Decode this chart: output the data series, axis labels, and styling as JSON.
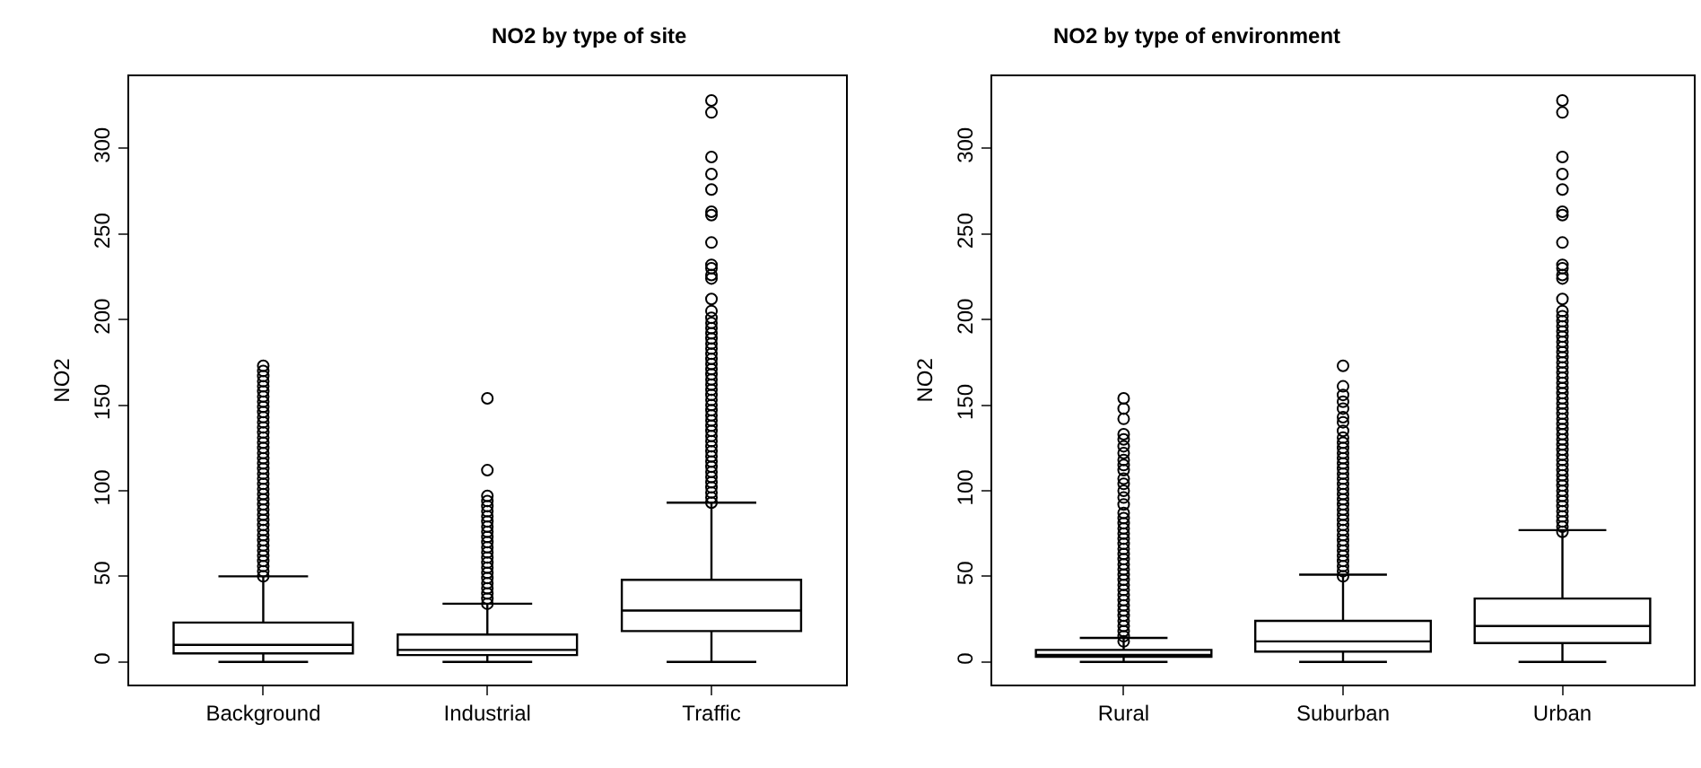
{
  "chart_data": [
    {
      "type": "box",
      "title": "NO2 by type of site",
      "ylabel": "NO2",
      "categories": [
        "Background",
        "Industrial",
        "Traffic"
      ],
      "ylim": [
        -13,
        342
      ],
      "yticks": [
        0,
        50,
        100,
        150,
        200,
        250,
        300
      ],
      "color": "#000000",
      "boxes": [
        {
          "low": 0,
          "q1": 5,
          "median": 10,
          "q3": 23,
          "high": 50,
          "outliers": [
            50,
            53,
            56,
            59,
            62,
            65,
            68,
            71,
            74,
            77,
            80,
            83,
            86,
            89,
            92,
            95,
            98,
            101,
            104,
            107,
            110,
            113,
            116,
            119,
            122,
            125,
            128,
            131,
            134,
            137,
            140,
            143,
            146,
            149,
            152,
            155,
            158,
            161,
            164,
            167,
            170,
            173
          ]
        },
        {
          "low": 0,
          "q1": 4,
          "median": 7,
          "q3": 16,
          "high": 34,
          "outliers": [
            34,
            37,
            40,
            43,
            46,
            49,
            52,
            55,
            58,
            61,
            64,
            67,
            70,
            73,
            76,
            79,
            82,
            85,
            88,
            91,
            94,
            97,
            112,
            154
          ]
        },
        {
          "low": 0,
          "q1": 18,
          "median": 30,
          "q3": 48,
          "high": 93,
          "outliers": [
            93,
            96,
            99,
            102,
            105,
            108,
            111,
            114,
            117,
            120,
            123,
            126,
            129,
            132,
            135,
            138,
            141,
            144,
            147,
            150,
            153,
            156,
            159,
            162,
            165,
            168,
            171,
            174,
            177,
            180,
            183,
            186,
            189,
            192,
            195,
            198,
            201,
            205,
            212,
            224,
            226,
            230,
            232,
            245,
            261,
            263,
            276,
            285,
            295,
            321,
            328
          ]
        }
      ]
    },
    {
      "type": "box",
      "title": "NO2 by type of environment",
      "ylabel": "NO2",
      "categories": [
        "Rural",
        "Suburban",
        "Urban"
      ],
      "ylim": [
        -13,
        342
      ],
      "yticks": [
        0,
        50,
        100,
        150,
        200,
        250,
        300
      ],
      "color": "#000000",
      "boxes": [
        {
          "low": 0,
          "q1": 3,
          "median": 4,
          "q3": 7,
          "high": 14,
          "outliers": [
            12,
            15,
            18,
            21,
            24,
            27,
            30,
            33,
            36,
            39,
            42,
            45,
            48,
            51,
            54,
            57,
            60,
            63,
            66,
            69,
            72,
            75,
            78,
            81,
            84,
            87,
            92,
            96,
            100,
            104,
            107,
            112,
            115,
            118,
            122,
            126,
            130,
            133,
            142,
            148,
            154
          ]
        },
        {
          "low": 0,
          "q1": 6,
          "median": 12,
          "q3": 24,
          "high": 51,
          "outliers": [
            50,
            53,
            56,
            59,
            62,
            65,
            68,
            71,
            74,
            77,
            80,
            83,
            86,
            89,
            92,
            95,
            98,
            101,
            104,
            107,
            110,
            113,
            116,
            119,
            122,
            125,
            128,
            131,
            135,
            140,
            143,
            148,
            152,
            156,
            161,
            173
          ]
        },
        {
          "low": 0,
          "q1": 11,
          "median": 21,
          "q3": 37,
          "high": 77,
          "outliers": [
            76,
            79,
            82,
            85,
            88,
            91,
            94,
            97,
            100,
            103,
            106,
            109,
            112,
            115,
            118,
            121,
            124,
            127,
            130,
            133,
            136,
            139,
            142,
            145,
            148,
            151,
            154,
            157,
            160,
            163,
            166,
            169,
            172,
            175,
            178,
            181,
            184,
            187,
            190,
            193,
            196,
            199,
            202,
            205,
            212,
            224,
            226,
            230,
            232,
            245,
            261,
            263,
            276,
            285,
            295,
            321,
            328
          ]
        }
      ]
    }
  ]
}
